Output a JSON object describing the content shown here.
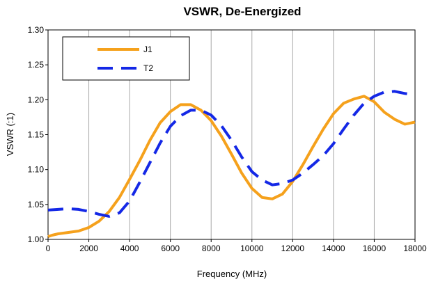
{
  "chart_data": {
    "type": "line",
    "title": "VSWR, De-Energized",
    "xlabel": "Frequency (MHz)",
    "ylabel": "VSWR (:1)",
    "xlim": [
      0,
      18000
    ],
    "ylim": [
      1.0,
      1.3
    ],
    "x_ticks": [
      0,
      2000,
      4000,
      6000,
      8000,
      10000,
      12000,
      14000,
      16000,
      18000
    ],
    "x_tick_labels": [
      "0",
      "2000",
      "4000",
      "6000",
      "8000",
      "10000",
      "12000",
      "14000",
      "16000",
      "18000"
    ],
    "y_ticks": [
      1.0,
      1.05,
      1.1,
      1.15,
      1.2,
      1.25,
      1.3
    ],
    "y_tick_labels": [
      "1.00",
      "1.05",
      "1.10",
      "1.15",
      "1.20",
      "1.25",
      "1.30"
    ],
    "grid": "vertical",
    "legend_position": "top-left",
    "series": [
      {
        "name": "J1",
        "color": "#F5A11C",
        "style": "solid",
        "x": [
          0,
          200,
          500,
          1000,
          1500,
          2000,
          2500,
          3000,
          3500,
          4000,
          4500,
          5000,
          5500,
          6000,
          6500,
          7000,
          7500,
          8000,
          8500,
          9000,
          9500,
          10000,
          10500,
          11000,
          11500,
          12000,
          12500,
          13000,
          13500,
          14000,
          14500,
          15000,
          15500,
          16000,
          16500,
          17000,
          17500,
          18000
        ],
        "y": [
          1.004,
          1.006,
          1.008,
          1.01,
          1.012,
          1.017,
          1.026,
          1.04,
          1.06,
          1.086,
          1.113,
          1.142,
          1.167,
          1.183,
          1.193,
          1.193,
          1.185,
          1.17,
          1.148,
          1.122,
          1.095,
          1.073,
          1.06,
          1.058,
          1.065,
          1.083,
          1.107,
          1.133,
          1.158,
          1.18,
          1.195,
          1.201,
          1.205,
          1.197,
          1.182,
          1.172,
          1.165,
          1.168
        ]
      },
      {
        "name": "T2",
        "color": "#1428E6",
        "style": "dashed",
        "x": [
          0,
          500,
          1000,
          1500,
          2000,
          2500,
          3000,
          3500,
          4000,
          4500,
          5000,
          5500,
          6000,
          6500,
          7000,
          7500,
          8000,
          8500,
          9000,
          9500,
          10000,
          10500,
          11000,
          11500,
          12000,
          12500,
          13000,
          13500,
          14000,
          14500,
          15000,
          15500,
          16000,
          16500,
          17000,
          17500,
          18000
        ],
        "y": [
          1.042,
          1.043,
          1.044,
          1.043,
          1.04,
          1.036,
          1.033,
          1.038,
          1.055,
          1.082,
          1.11,
          1.138,
          1.162,
          1.177,
          1.185,
          1.185,
          1.178,
          1.163,
          1.142,
          1.118,
          1.097,
          1.085,
          1.078,
          1.08,
          1.085,
          1.095,
          1.107,
          1.12,
          1.137,
          1.158,
          1.178,
          1.195,
          1.205,
          1.211,
          1.212,
          1.209,
          1.207
        ]
      }
    ]
  }
}
